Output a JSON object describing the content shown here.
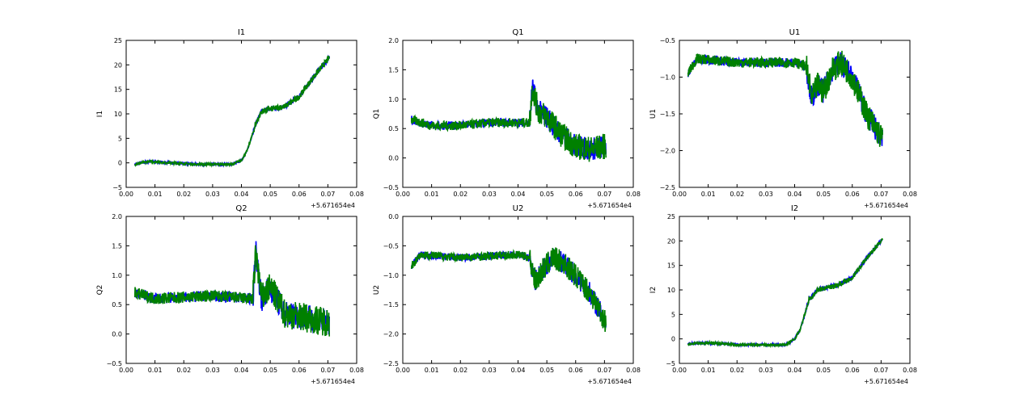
{
  "chart_data": [
    {
      "type": "line",
      "title": "I1",
      "ylabel": "I1",
      "xlim": [
        0,
        0.08
      ],
      "ylim": [
        -5,
        25
      ],
      "yticks": [
        "25",
        "20",
        "15",
        "10",
        "5",
        "0",
        "−5"
      ],
      "ytick_values": [
        25,
        20,
        15,
        10,
        5,
        0,
        -5
      ],
      "trend": [
        [
          0.003,
          -0.3
        ],
        [
          0.008,
          0.3
        ],
        [
          0.015,
          0
        ],
        [
          0.025,
          -0.3
        ],
        [
          0.037,
          -0.3
        ],
        [
          0.04,
          0.5
        ],
        [
          0.042,
          2.5
        ],
        [
          0.045,
          8
        ],
        [
          0.047,
          10.5
        ],
        [
          0.05,
          11
        ],
        [
          0.055,
          11.5
        ],
        [
          0.06,
          13.5
        ],
        [
          0.065,
          17.5
        ],
        [
          0.0705,
          21.5
        ]
      ],
      "noise": [
        0.25,
        0.6
      ]
    },
    {
      "type": "line",
      "title": "Q1",
      "ylabel": "Q1",
      "xlim": [
        0,
        0.08
      ],
      "ylim": [
        -0.5,
        2.0
      ],
      "yticks": [
        "2.0",
        "1.5",
        "1.0",
        "0.5",
        "0.0",
        "−0.5"
      ],
      "ytick_values": [
        2.0,
        1.5,
        1.0,
        0.5,
        0.0,
        -0.5
      ],
      "trend": [
        [
          0.003,
          0.65
        ],
        [
          0.01,
          0.55
        ],
        [
          0.02,
          0.55
        ],
        [
          0.03,
          0.6
        ],
        [
          0.044,
          0.6
        ],
        [
          0.045,
          1.2
        ],
        [
          0.047,
          0.8
        ],
        [
          0.05,
          0.7
        ],
        [
          0.055,
          0.4
        ],
        [
          0.06,
          0.2
        ],
        [
          0.065,
          0.15
        ],
        [
          0.0705,
          0.2
        ]
      ],
      "noise": [
        0.08,
        0.22
      ]
    },
    {
      "type": "line",
      "title": "U1",
      "ylabel": "U1",
      "xlim": [
        0,
        0.08
      ],
      "ylim": [
        -2.5,
        -0.5
      ],
      "yticks": [
        "−0.5",
        "−1.0",
        "−1.5",
        "−2.0",
        "−2.5"
      ],
      "ytick_values": [
        -0.5,
        -1.0,
        -1.5,
        -2.0,
        -2.5
      ],
      "trend": [
        [
          0.003,
          -0.95
        ],
        [
          0.006,
          -0.75
        ],
        [
          0.02,
          -0.8
        ],
        [
          0.04,
          -0.8
        ],
        [
          0.044,
          -0.85
        ],
        [
          0.046,
          -1.3
        ],
        [
          0.048,
          -1.1
        ],
        [
          0.05,
          -1.2
        ],
        [
          0.053,
          -0.9
        ],
        [
          0.056,
          -0.8
        ],
        [
          0.06,
          -1.0
        ],
        [
          0.065,
          -1.5
        ],
        [
          0.0705,
          -1.85
        ]
      ],
      "noise": [
        0.07,
        0.18
      ]
    },
    {
      "type": "line",
      "title": "Q2",
      "ylabel": "Q2",
      "xlim": [
        0,
        0.08
      ],
      "ylim": [
        -0.5,
        2.0
      ],
      "yticks": [
        "2.0",
        "1.5",
        "1.0",
        "0.5",
        "0.0",
        "−0.5"
      ],
      "ytick_values": [
        2.0,
        1.5,
        1.0,
        0.5,
        0.0,
        -0.5
      ],
      "trend": [
        [
          0.003,
          0.7
        ],
        [
          0.01,
          0.6
        ],
        [
          0.03,
          0.65
        ],
        [
          0.044,
          0.6
        ],
        [
          0.045,
          1.4
        ],
        [
          0.047,
          0.6
        ],
        [
          0.05,
          0.8
        ],
        [
          0.055,
          0.35
        ],
        [
          0.06,
          0.3
        ],
        [
          0.065,
          0.25
        ],
        [
          0.0705,
          0.2
        ]
      ],
      "noise": [
        0.1,
        0.25
      ]
    },
    {
      "type": "line",
      "title": "U2",
      "ylabel": "U2",
      "xlim": [
        0,
        0.08
      ],
      "ylim": [
        -2.5,
        0.0
      ],
      "yticks": [
        "0.0",
        "−0.5",
        "−1.0",
        "−1.5",
        "−2.0",
        "−2.5"
      ],
      "ytick_values": [
        0,
        -0.5,
        -1.0,
        -1.5,
        -2.0,
        -2.5
      ],
      "trend": [
        [
          0.003,
          -0.85
        ],
        [
          0.006,
          -0.65
        ],
        [
          0.02,
          -0.7
        ],
        [
          0.04,
          -0.65
        ],
        [
          0.044,
          -0.7
        ],
        [
          0.046,
          -1.1
        ],
        [
          0.048,
          -0.95
        ],
        [
          0.052,
          -0.7
        ],
        [
          0.056,
          -0.8
        ],
        [
          0.06,
          -1.0
        ],
        [
          0.065,
          -1.3
        ],
        [
          0.0705,
          -1.8
        ]
      ],
      "noise": [
        0.07,
        0.2
      ]
    },
    {
      "type": "line",
      "title": "I2",
      "ylabel": "I2",
      "xlim": [
        0,
        0.08
      ],
      "ylim": [
        -5,
        25
      ],
      "yticks": [
        "25",
        "20",
        "15",
        "10",
        "5",
        "0",
        "−5"
      ],
      "ytick_values": [
        25,
        20,
        15,
        10,
        5,
        0,
        -5
      ],
      "trend": [
        [
          0.003,
          -1
        ],
        [
          0.01,
          -0.8
        ],
        [
          0.02,
          -1.2
        ],
        [
          0.037,
          -1.2
        ],
        [
          0.04,
          0
        ],
        [
          0.042,
          2
        ],
        [
          0.045,
          8
        ],
        [
          0.048,
          10
        ],
        [
          0.055,
          11
        ],
        [
          0.06,
          12.5
        ],
        [
          0.065,
          16.5
        ],
        [
          0.0705,
          20.3
        ]
      ],
      "noise": [
        0.25,
        0.5
      ]
    }
  ],
  "xticks": [
    "0.00",
    "0.01",
    "0.02",
    "0.03",
    "0.04",
    "0.05",
    "0.06",
    "0.07",
    "0.08"
  ],
  "xtick_values": [
    0,
    0.01,
    0.02,
    0.03,
    0.04,
    0.05,
    0.06,
    0.07,
    0.08
  ],
  "x_offset": "+5.671654e4",
  "series_colors": [
    "#0000ff",
    "#008000"
  ]
}
